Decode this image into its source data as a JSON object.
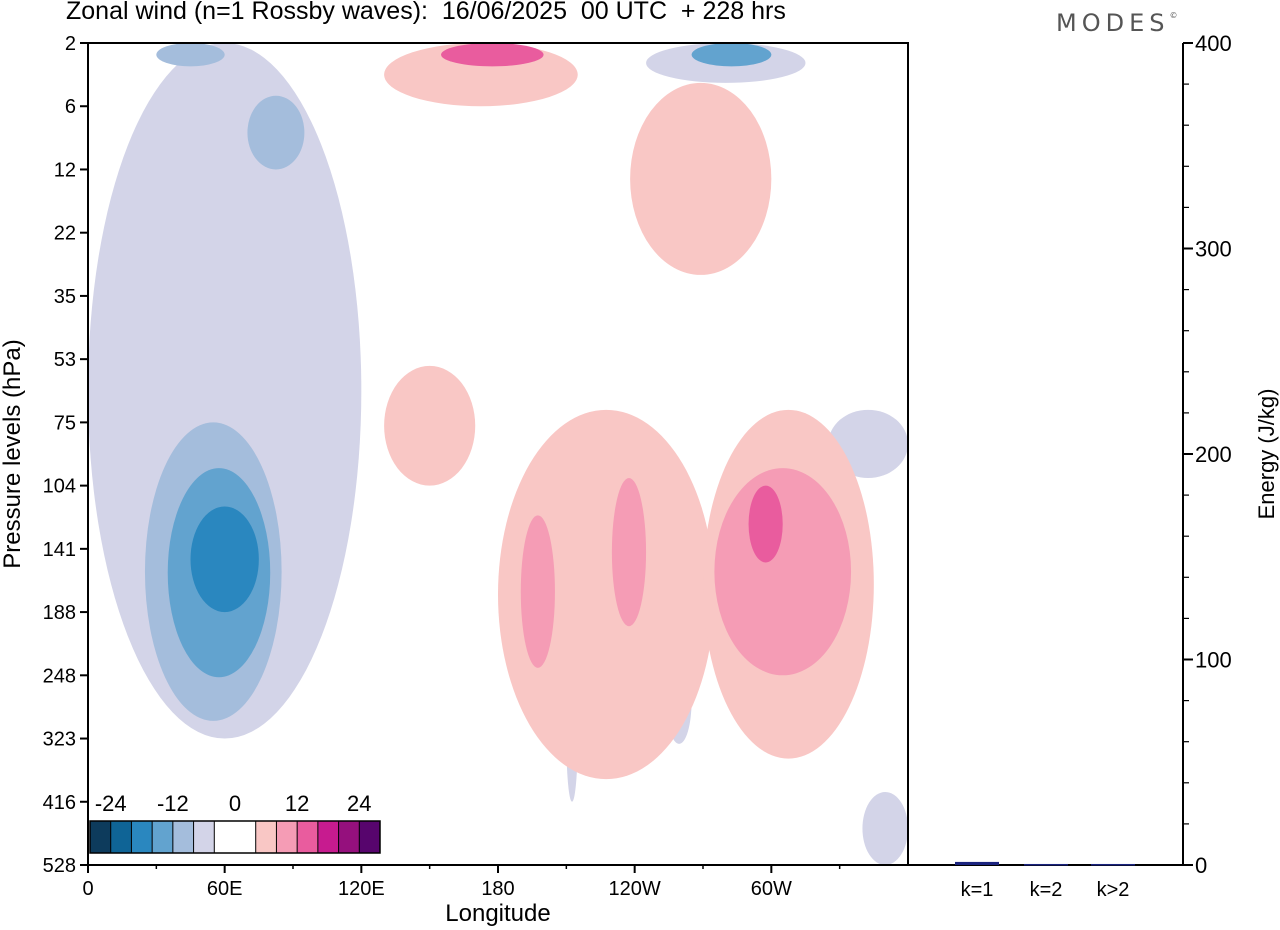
{
  "header": {
    "title": "Zonal wind (n=1 Rossby waves):  16/06/2025  00 UTC  + 228 hrs",
    "brand": "MODES",
    "brand_mark": "©"
  },
  "chart_data": [
    {
      "type": "heatmap",
      "title": "Zonal wind (n=1 Rossby waves):  16/06/2025  00 UTC  + 228 hrs",
      "xlabel": "Longitude",
      "ylabel": "Pressure levels (hPa)",
      "x_ticks": [
        "0",
        "60E",
        "120E",
        "180",
        "120W",
        "60W"
      ],
      "x_tick_values": [
        0,
        60,
        120,
        180,
        240,
        300
      ],
      "xlim": [
        0,
        360
      ],
      "y_ticks": [
        "2",
        "6",
        "12",
        "22",
        "35",
        "53",
        "75",
        "104",
        "141",
        "188",
        "248",
        "323",
        "416",
        "528"
      ],
      "y_reversed": true,
      "colorbar": {
        "labels": [
          "-24",
          "-12",
          "0",
          "12",
          "24"
        ],
        "label_levels": [
          -24,
          -12,
          0,
          12,
          24
        ],
        "colors": [
          "#0d3b5c",
          "#0f6496",
          "#2a87bf",
          "#62a3cf",
          "#a4bddc",
          "#d3d4e8",
          "#ffffff",
          "#ffffff",
          "#f9c7c5",
          "#f59cb5",
          "#e95c9e",
          "#c71b8f",
          "#95107d",
          "#57056d"
        ],
        "legend_location": "bottom-left"
      },
      "regions": [
        {
          "sign": "negative",
          "level": 1,
          "lon": [
            0,
            120
          ],
          "hPa": [
            2,
            323
          ]
        },
        {
          "sign": "negative",
          "level": 2,
          "lon": [
            25,
            85
          ],
          "hPa": [
            75,
            300
          ]
        },
        {
          "sign": "negative",
          "level": 3,
          "lon": [
            35,
            80
          ],
          "hPa": [
            95,
            250
          ]
        },
        {
          "sign": "negative",
          "level": 4,
          "lon": [
            45,
            75
          ],
          "hPa": [
            115,
            188
          ]
        },
        {
          "sign": "negative",
          "level": 2,
          "lon": [
            70,
            95
          ],
          "hPa": [
            5,
            12
          ]
        },
        {
          "sign": "negative",
          "level": 2,
          "lon": [
            30,
            60
          ],
          "hPa": [
            2,
            3
          ]
        },
        {
          "sign": "negative",
          "level": 1,
          "lon": [
            245,
            315
          ],
          "hPa": [
            2,
            4
          ]
        },
        {
          "sign": "negative",
          "level": 3,
          "lon": [
            265,
            300
          ],
          "hPa": [
            2,
            3
          ]
        },
        {
          "sign": "negative",
          "level": 1,
          "lon": [
            210,
            215
          ],
          "hPa": [
            248,
            416
          ]
        },
        {
          "sign": "negative",
          "level": 1,
          "lon": [
            254,
            265
          ],
          "hPa": [
            230,
            330
          ]
        },
        {
          "sign": "negative",
          "level": 1,
          "lon": [
            325,
            360
          ],
          "hPa": [
            70,
            100
          ]
        },
        {
          "sign": "negative",
          "level": 1,
          "lon": [
            340,
            360
          ],
          "hPa": [
            400,
            528
          ]
        },
        {
          "sign": "positive",
          "level": 1,
          "lon": [
            130,
            215
          ],
          "hPa": [
            2,
            6
          ]
        },
        {
          "sign": "positive",
          "level": 3,
          "lon": [
            155,
            200
          ],
          "hPa": [
            2,
            3
          ]
        },
        {
          "sign": "positive",
          "level": 1,
          "lon": [
            238,
            300
          ],
          "hPa": [
            4,
            30
          ]
        },
        {
          "sign": "positive",
          "level": 1,
          "lon": [
            130,
            170
          ],
          "hPa": [
            55,
            104
          ]
        },
        {
          "sign": "positive",
          "level": 1,
          "lon": [
            180,
            275
          ],
          "hPa": [
            70,
            380
          ]
        },
        {
          "sign": "positive",
          "level": 2,
          "lon": [
            190,
            205
          ],
          "hPa": [
            120,
            240
          ]
        },
        {
          "sign": "positive",
          "level": 2,
          "lon": [
            230,
            245
          ],
          "hPa": [
            100,
            200
          ]
        },
        {
          "sign": "positive",
          "level": 1,
          "lon": [
            270,
            345
          ],
          "hPa": [
            70,
            350
          ]
        },
        {
          "sign": "positive",
          "level": 2,
          "lon": [
            275,
            335
          ],
          "hPa": [
            95,
            248
          ]
        },
        {
          "sign": "positive",
          "level": 3,
          "lon": [
            290,
            305
          ],
          "hPa": [
            104,
            150
          ]
        }
      ]
    },
    {
      "type": "bar",
      "ylabel": "Energy (J/kg)",
      "categories": [
        "k=1",
        "k=2",
        "k>2"
      ],
      "values": [
        1.5,
        0.5,
        0.5
      ],
      "ylim": [
        0,
        400
      ],
      "y_ticks": [
        "0",
        "100",
        "200",
        "300",
        "400"
      ],
      "y_tick_values": [
        0,
        100,
        200,
        300,
        400
      ],
      "colors": [
        "#1a237e",
        "#1a237e",
        "#1a237e"
      ]
    }
  ]
}
